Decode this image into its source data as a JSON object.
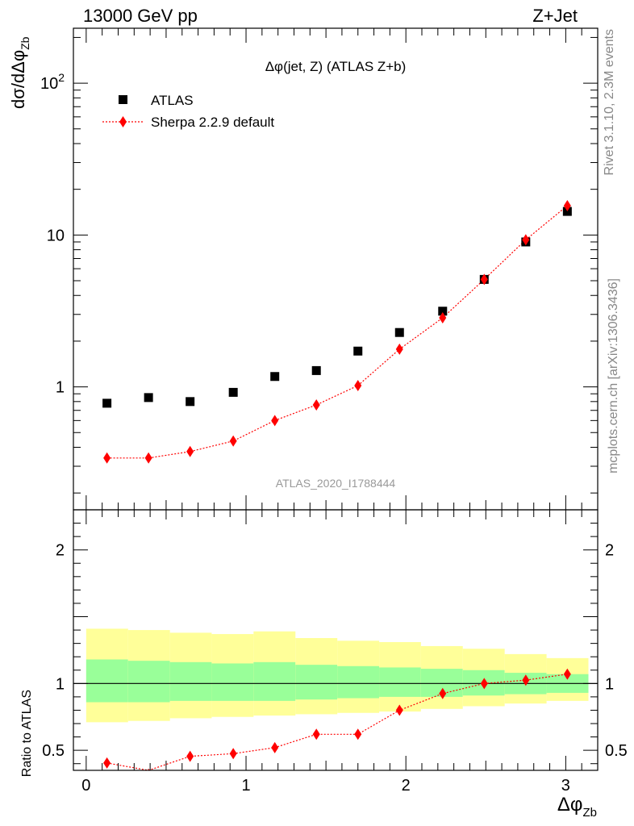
{
  "header": {
    "left": "13000 GeV pp",
    "right": "Z+Jet"
  },
  "side": {
    "rivet": "Rivet 3.1.10,  2.3M events",
    "mcplots": "mcplots.cern.ch [arXiv:1306.3436]"
  },
  "colors": {
    "atlas": "#000000",
    "sherpa": "#ff0000",
    "band_inner": "#99ff99",
    "band_outer": "#ffff99"
  },
  "chart_data": [
    {
      "type": "scatter",
      "title": "Δφ(jet, Z) (ATLAS Z+b)",
      "watermark": "ATLAS_2020_I1788444",
      "ylabel": "dσ/dΔφ_Zb",
      "yscale": "log",
      "ylim": [
        0.155,
        230
      ],
      "xlim": [
        -0.08,
        3.2
      ],
      "legend": "top-left",
      "y_ticks": [
        {
          "value": 1,
          "label": "1"
        },
        {
          "value": 10,
          "label": "10"
        },
        {
          "value": 100,
          "label": "10^2"
        }
      ],
      "x": [
        0.13,
        0.39,
        0.65,
        0.92,
        1.18,
        1.44,
        1.7,
        1.96,
        2.23,
        2.49,
        2.75,
        3.01
      ],
      "series": [
        {
          "name": "ATLAS",
          "marker": "square",
          "values": [
            0.78,
            0.85,
            0.8,
            0.92,
            1.17,
            1.28,
            1.72,
            2.28,
            3.15,
            5.1,
            9.0,
            14.3
          ]
        },
        {
          "name": "Sherpa 2.2.9 default",
          "marker": "diamond",
          "line": "dotted",
          "values": [
            0.34,
            0.34,
            0.375,
            0.44,
            0.6,
            0.76,
            1.02,
            1.77,
            2.85,
            5.1,
            9.3,
            15.6
          ]
        }
      ]
    },
    {
      "type": "line",
      "ylabel": "Ratio to ATLAS",
      "ylim": [
        0.35,
        2.3
      ],
      "xlim": [
        -0.08,
        3.2
      ],
      "xlabel": "Δφ_Zb",
      "x_ticks": [
        {
          "value": 0,
          "label": "0"
        },
        {
          "value": 1,
          "label": "1"
        },
        {
          "value": 2,
          "label": "2"
        },
        {
          "value": 3,
          "label": "3"
        }
      ],
      "y_ticks": [
        {
          "value": 0.5,
          "label": "0.5"
        },
        {
          "value": 1,
          "label": "1"
        },
        {
          "value": 2,
          "label": "2"
        }
      ],
      "bin_edges": [
        0,
        0.262,
        0.524,
        0.785,
        1.047,
        1.309,
        1.571,
        1.833,
        2.094,
        2.356,
        2.618,
        2.88,
        3.142
      ],
      "band_outer": {
        "low": [
          0.71,
          0.72,
          0.74,
          0.75,
          0.76,
          0.77,
          0.78,
          0.79,
          0.81,
          0.83,
          0.85,
          0.87
        ],
        "high": [
          1.41,
          1.4,
          1.38,
          1.37,
          1.39,
          1.34,
          1.32,
          1.31,
          1.28,
          1.26,
          1.22,
          1.19
        ]
      },
      "band_inner": {
        "low": [
          0.86,
          0.86,
          0.87,
          0.87,
          0.87,
          0.88,
          0.89,
          0.9,
          0.9,
          0.91,
          0.92,
          0.93
        ],
        "high": [
          1.18,
          1.17,
          1.16,
          1.15,
          1.16,
          1.14,
          1.13,
          1.12,
          1.11,
          1.1,
          1.08,
          1.07
        ]
      },
      "series": [
        {
          "name": "Sherpa 2.2.9 default",
          "values": [
            0.405,
            0.345,
            0.455,
            0.475,
            0.52,
            0.62,
            0.62,
            0.8,
            0.925,
            1.0,
            1.025,
            1.07
          ],
          "errors": [
            0.03,
            0.02,
            0.03,
            0.03,
            0.025,
            0.02,
            0.015,
            0.01,
            0.01,
            0.005,
            0.005,
            0.005
          ]
        }
      ]
    }
  ]
}
